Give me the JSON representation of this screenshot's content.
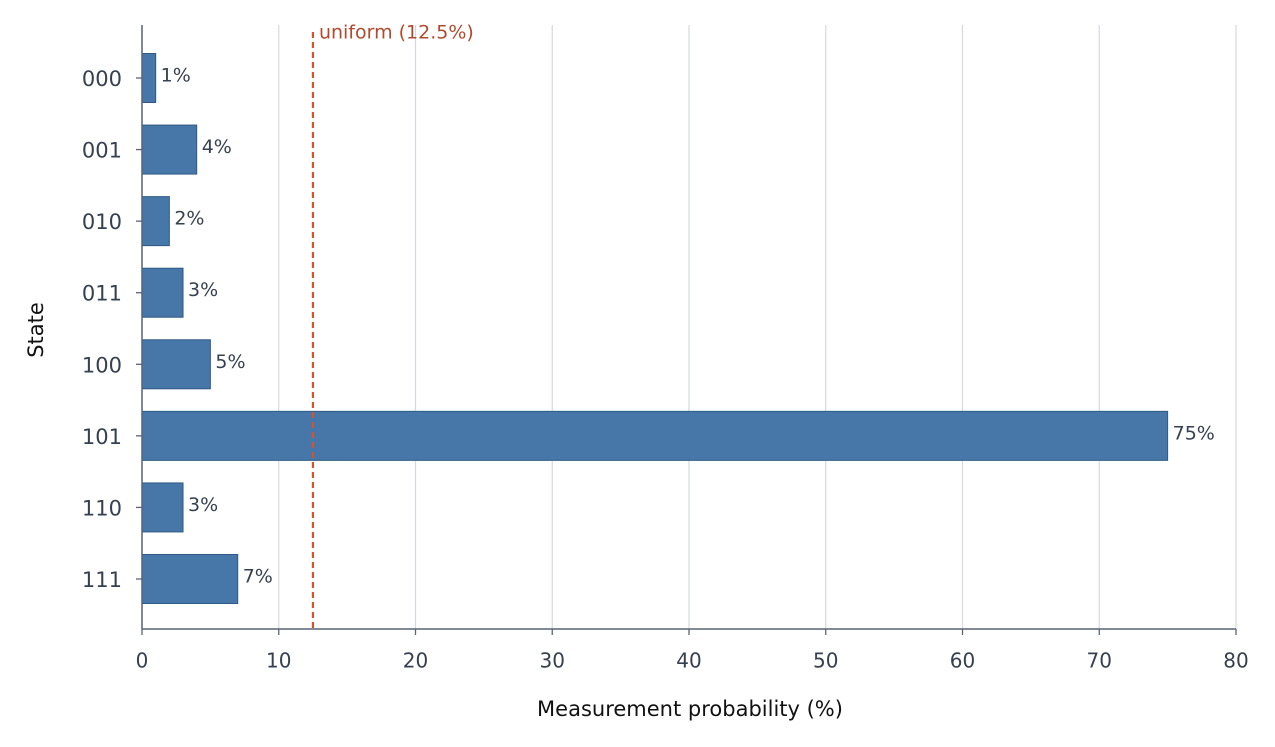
{
  "chart_data": {
    "type": "bar",
    "orientation": "horizontal",
    "categories": [
      "000",
      "001",
      "010",
      "011",
      "100",
      "101",
      "110",
      "111"
    ],
    "values": [
      1,
      4,
      2,
      3,
      5,
      75,
      3,
      7
    ],
    "value_labels": [
      "1%",
      "4%",
      "2%",
      "3%",
      "5%",
      "75%",
      "3%",
      "7%"
    ],
    "color": "#4677a8",
    "xlabel": "Measurement probability (%)",
    "ylabel": "State",
    "xlim": [
      0,
      80
    ],
    "xticks": [
      0,
      10,
      20,
      30,
      40,
      50,
      60,
      70,
      80
    ],
    "grid": true,
    "reference_line": {
      "value": 12.5,
      "label": "uniform (12.5%)",
      "color": "#d0562d"
    }
  }
}
